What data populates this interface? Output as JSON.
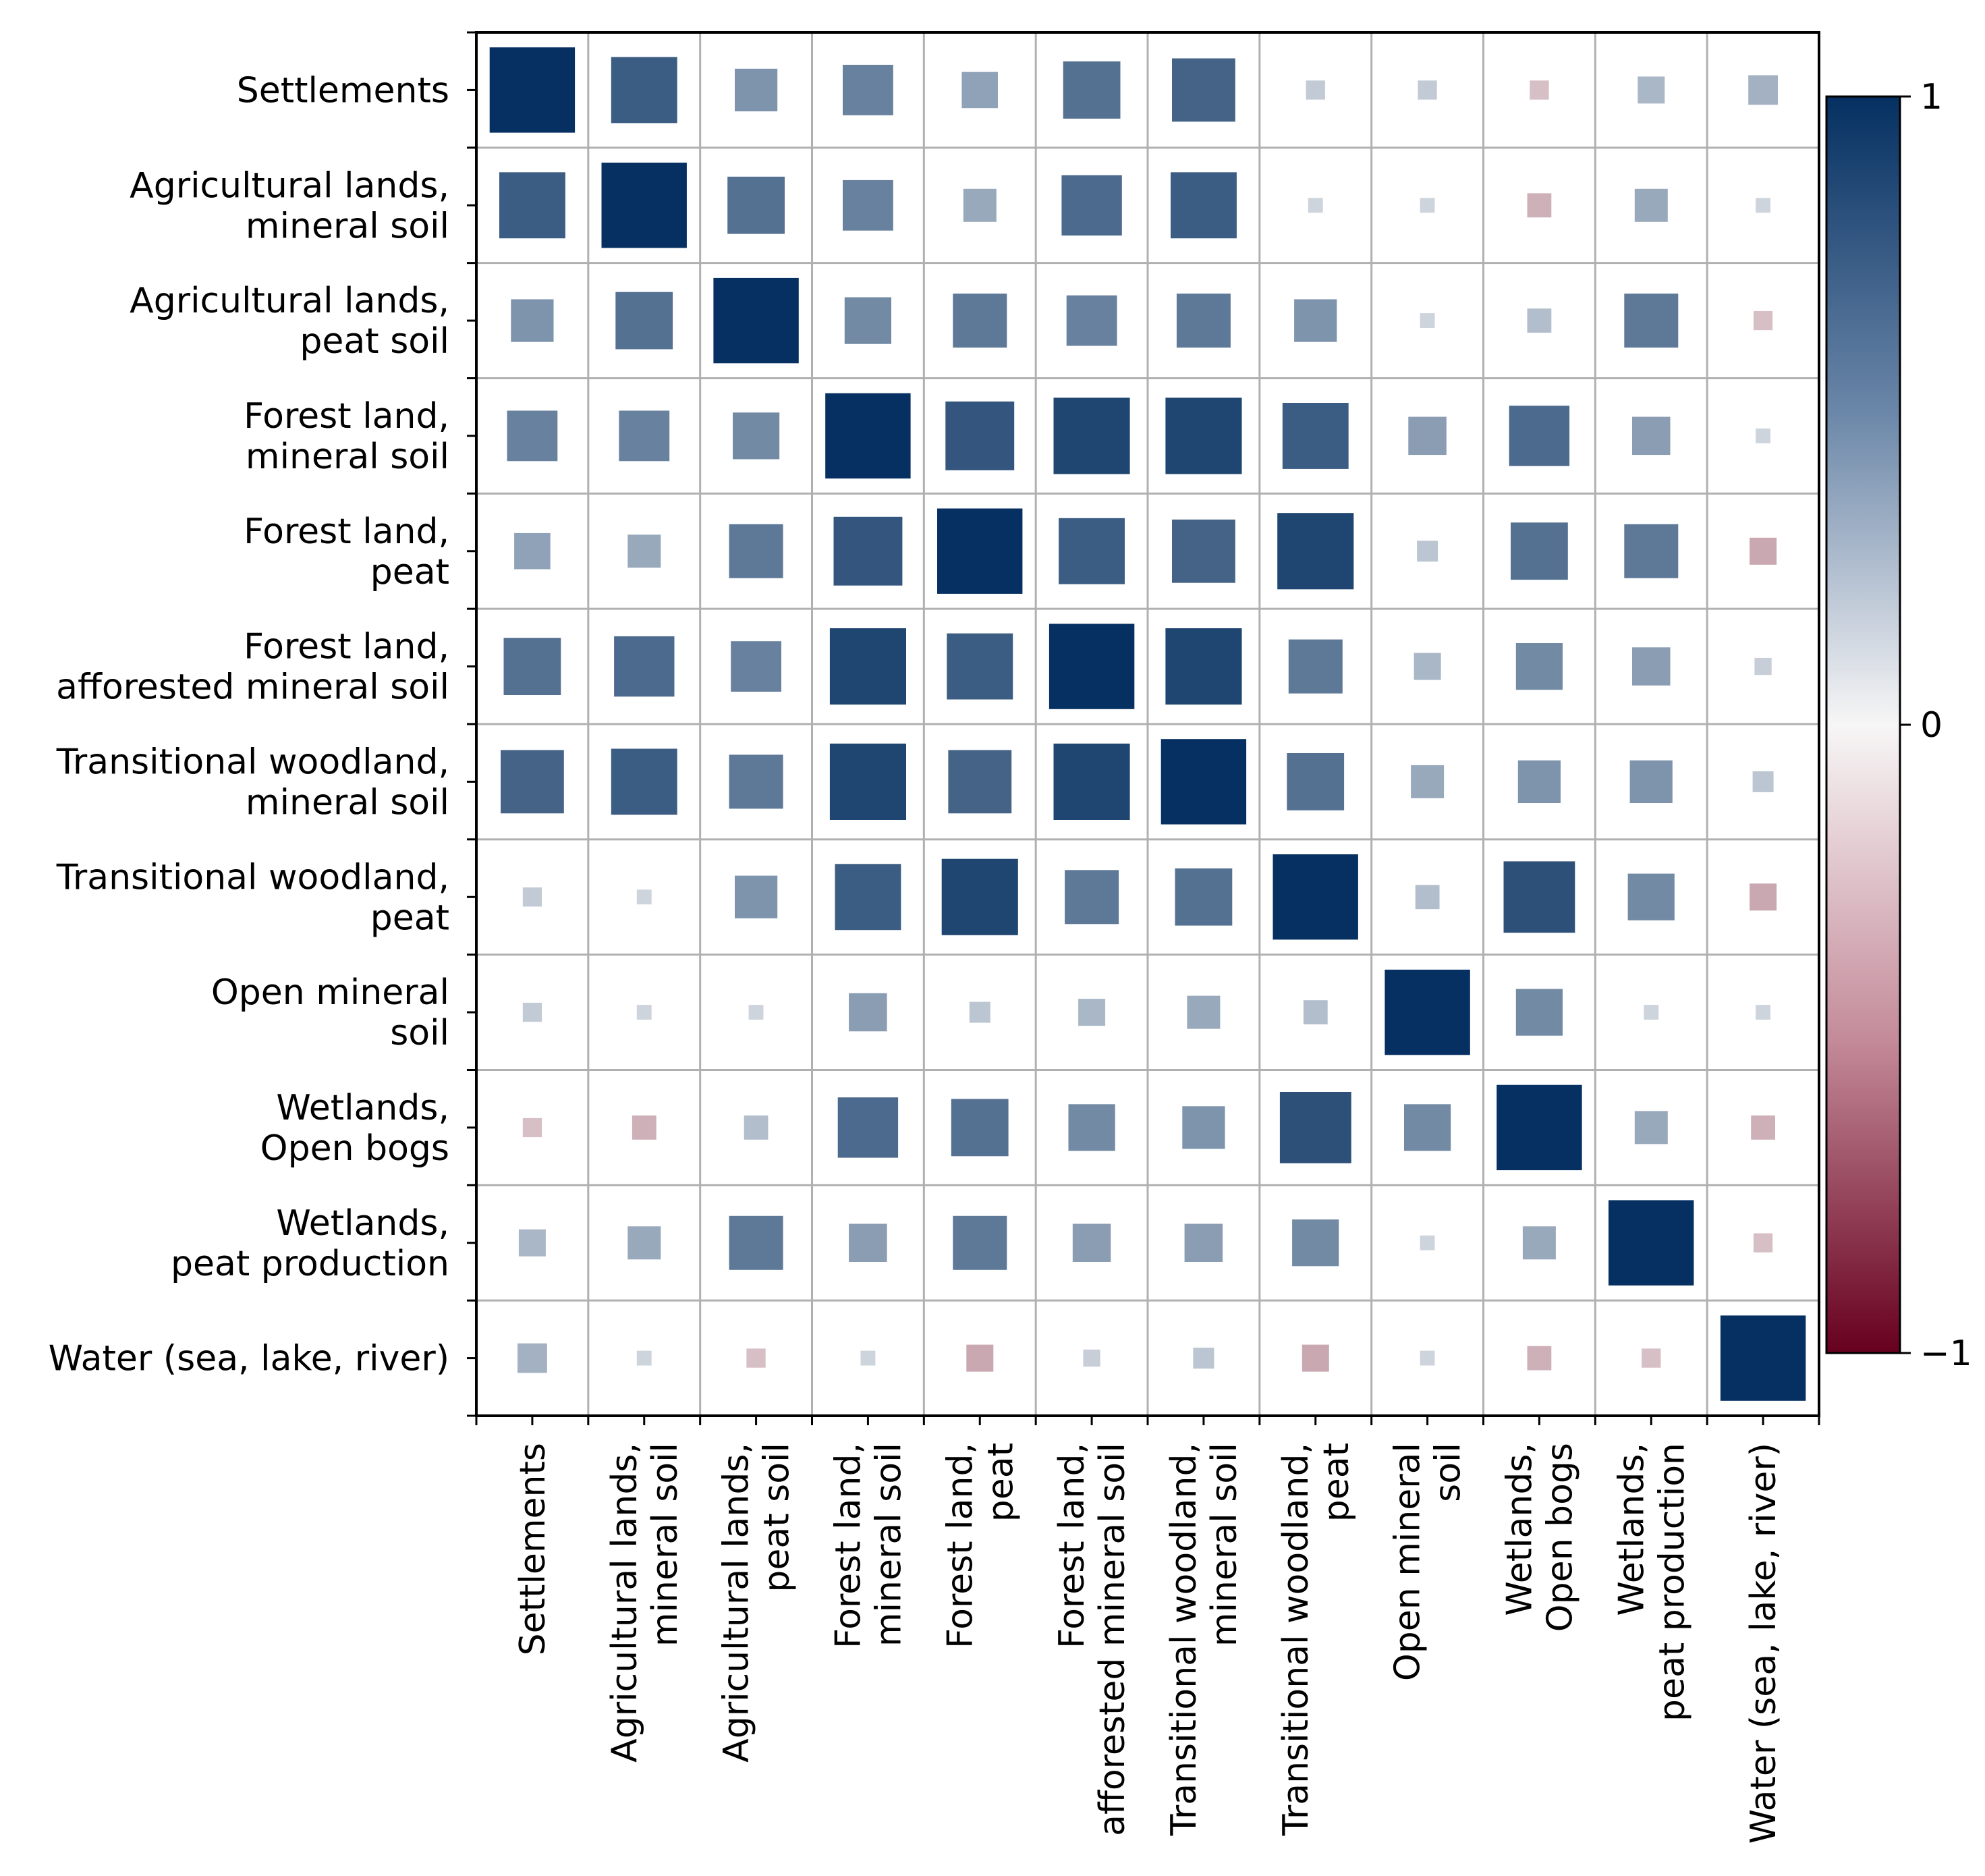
{
  "chart_data": {
    "type": "heatmap",
    "subtype": "correlation-matrix-sized-squares",
    "title": "",
    "xlabel": "",
    "ylabel": "",
    "labels": [
      [
        "Settlements"
      ],
      [
        "Agricultural lands,",
        "mineral soil"
      ],
      [
        "Agricultural lands,",
        "peat soil"
      ],
      [
        "Forest land,",
        "mineral soil"
      ],
      [
        "Forest land,",
        "peat"
      ],
      [
        "Forest land,",
        "afforested mineral soil"
      ],
      [
        "Transitional woodland,",
        "mineral soil"
      ],
      [
        "Transitional woodland,",
        "peat"
      ],
      [
        "Open mineral",
        "soil"
      ],
      [
        "Wetlands,",
        "Open bogs"
      ],
      [
        "Wetlands,",
        "peat production"
      ],
      [
        "Water (sea, lake, river)"
      ]
    ],
    "matrix": [
      [
        1.0,
        0.6,
        0.25,
        0.35,
        0.18,
        0.45,
        0.55,
        0.05,
        0.05,
        -0.05,
        0.1,
        0.12
      ],
      [
        0.6,
        1.0,
        0.45,
        0.35,
        0.15,
        0.5,
        0.6,
        0.03,
        0.03,
        -0.08,
        0.15,
        0.03
      ],
      [
        0.25,
        0.45,
        1.0,
        0.3,
        0.4,
        0.35,
        0.4,
        0.25,
        0.03,
        0.08,
        0.4,
        -0.05
      ],
      [
        0.35,
        0.35,
        0.3,
        1.0,
        0.65,
        0.8,
        0.8,
        0.6,
        0.2,
        0.5,
        0.2,
        0.03
      ],
      [
        0.18,
        0.15,
        0.4,
        0.65,
        1.0,
        0.6,
        0.55,
        0.8,
        0.06,
        0.45,
        0.4,
        -0.1
      ],
      [
        0.45,
        0.5,
        0.35,
        0.8,
        0.6,
        1.0,
        0.8,
        0.4,
        0.1,
        0.3,
        0.2,
        0.04
      ],
      [
        0.55,
        0.6,
        0.4,
        0.8,
        0.55,
        0.8,
        1.0,
        0.45,
        0.15,
        0.25,
        0.25,
        0.06
      ],
      [
        0.05,
        0.03,
        0.25,
        0.6,
        0.8,
        0.4,
        0.45,
        1.0,
        0.08,
        0.7,
        0.3,
        -0.1
      ],
      [
        0.05,
        0.03,
        0.03,
        0.2,
        0.06,
        0.1,
        0.15,
        0.08,
        1.0,
        0.3,
        0.03,
        0.03
      ],
      [
        -0.05,
        -0.08,
        0.08,
        0.5,
        0.45,
        0.3,
        0.25,
        0.7,
        0.3,
        1.0,
        0.15,
        -0.08
      ],
      [
        0.1,
        0.15,
        0.4,
        0.2,
        0.4,
        0.2,
        0.2,
        0.3,
        0.03,
        0.15,
        1.0,
        -0.05
      ],
      [
        0.12,
        0.03,
        -0.05,
        0.03,
        -0.1,
        0.04,
        0.06,
        -0.1,
        0.03,
        -0.08,
        -0.05,
        1.0
      ]
    ],
    "colorbar": {
      "ticks": [
        "1",
        "0",
        "−1"
      ],
      "range": [
        -1,
        1
      ],
      "colors": {
        "high": "#053061",
        "mid": "#f7f6f6",
        "low": "#67001f"
      }
    },
    "grid": true,
    "legend": "colorbar-right"
  }
}
